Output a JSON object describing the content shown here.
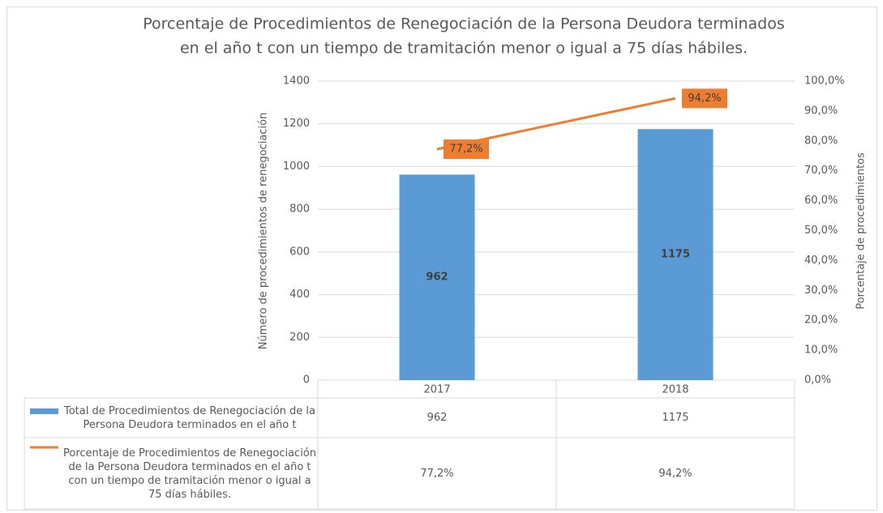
{
  "chart_data": {
    "type": "bar_line",
    "title": [
      "Porcentaje de Procedimientos de Renegociación de la Persona Deudora terminados",
      "en el año t con un tiempo de tramitación menor o igual a 75 días hábiles."
    ],
    "y_label": "Número de procedimientos de renegociación",
    "y2_label": "Porcentaje de procedimientos",
    "categories": [
      "2017",
      "2018"
    ],
    "series": [
      {
        "name": "Total de Procedimientos de Renegociación de la Persona Deudora terminados en el año t",
        "type": "bar",
        "color": "#5b9bd5",
        "values": [
          962,
          1175
        ]
      },
      {
        "name": "Porcentaje de Procedimientos de Renegociación de la Persona Deudora terminados en el año t con un tiempo de tramitación menor o igual a 75 días hábiles.",
        "type": "line",
        "axis": "y2",
        "color": "#ed7d31",
        "values": [
          77.2,
          94.2
        ],
        "value_labels": [
          "77,2%",
          "94,2%"
        ]
      }
    ],
    "ylim": [
      0,
      1400
    ],
    "yticks": [
      0,
      200,
      400,
      600,
      800,
      1000,
      1200,
      1400
    ],
    "y2lim": [
      0,
      100
    ],
    "y2ticks": [
      {
        "value": 0,
        "label": "0,0%"
      },
      {
        "value": 10,
        "label": "10,0%"
      },
      {
        "value": 20,
        "label": "20,0%"
      },
      {
        "value": 30,
        "label": "30,0%"
      },
      {
        "value": 40,
        "label": "40,0%"
      },
      {
        "value": 50,
        "label": "50,0%"
      },
      {
        "value": 60,
        "label": "60,0%"
      },
      {
        "value": 70,
        "label": "70,0%"
      },
      {
        "value": 80,
        "label": "80,0%"
      },
      {
        "value": 90,
        "label": "90,0%"
      },
      {
        "value": 100,
        "label": "100,0%"
      }
    ],
    "grid": true,
    "data_table": true
  }
}
